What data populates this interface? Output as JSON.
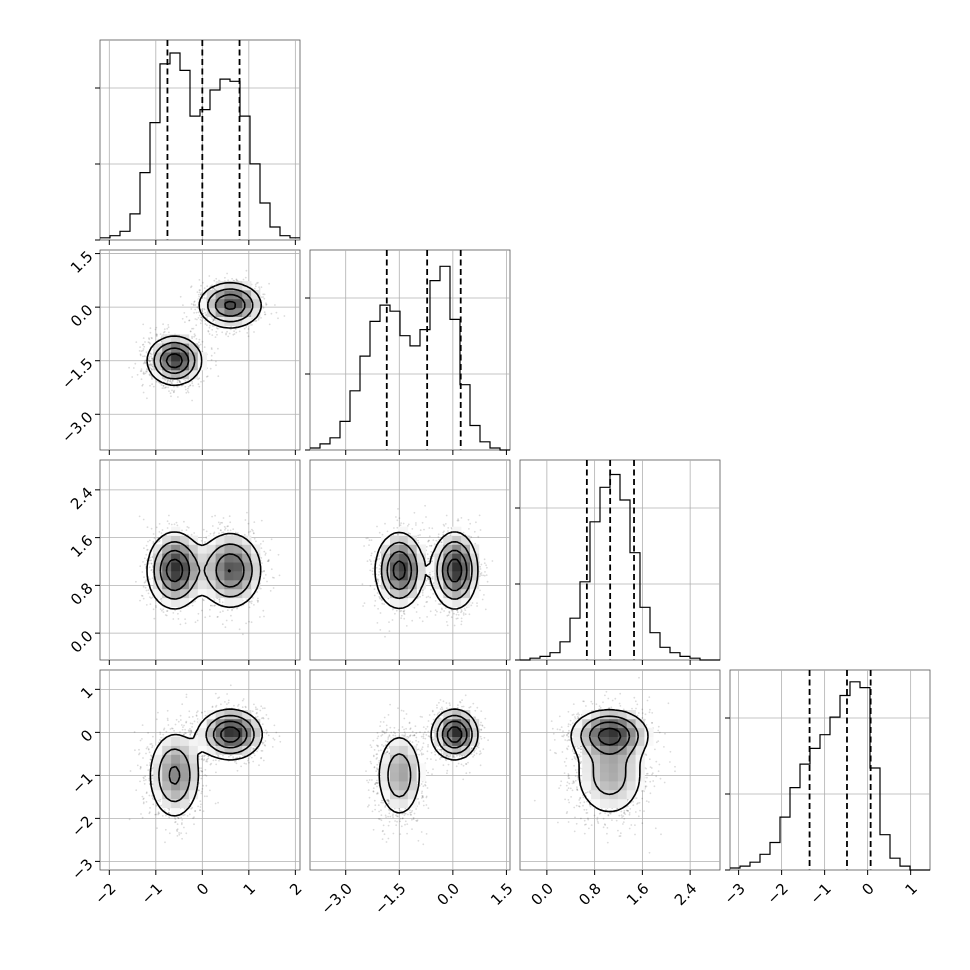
{
  "chart_data": {
    "type": "corner",
    "n_params": 4,
    "labels": [
      "",
      "",
      "",
      ""
    ],
    "ranges": [
      [
        -2.2,
        2.1
      ],
      [
        -4.0,
        1.6
      ],
      [
        -0.45,
        2.9
      ],
      [
        -3.2,
        1.45
      ]
    ],
    "ticks": [
      [
        -2,
        -1,
        0,
        1,
        2
      ],
      [
        -3.0,
        -1.5,
        0.0,
        1.5
      ],
      [
        0.0,
        0.8,
        1.6,
        2.4
      ],
      [
        -3,
        -2,
        -1,
        0,
        1
      ]
    ],
    "tick_labels": [
      [
        "−2",
        "−1",
        "0",
        "1",
        "2"
      ],
      [
        "−3.0",
        "−1.5",
        "0.0",
        "1.5"
      ],
      [
        "0.0",
        "0.8",
        "1.6",
        "2.4"
      ],
      [
        "−3",
        "−2",
        "−1",
        "0",
        "1"
      ]
    ],
    "quantiles": [
      [
        -0.75,
        0.0,
        0.8
      ],
      [
        -1.85,
        -0.72,
        0.22
      ],
      [
        0.67,
        1.06,
        1.46
      ],
      [
        -1.35,
        -0.48,
        0.07
      ]
    ],
    "histograms": [
      {
        "param": 0,
        "edges_start": -2.2,
        "bin_width": 0.215,
        "counts": [
          1,
          2,
          4,
          12,
          31,
          54,
          81,
          86,
          78,
          57,
          60,
          69,
          74,
          73,
          57,
          35,
          17,
          6,
          2,
          1
        ],
        "y_max": 92
      },
      {
        "param": 1,
        "edges_start": -4.0,
        "bin_width": 0.28,
        "counts": [
          1,
          3,
          6,
          14,
          29,
          46,
          63,
          71,
          68,
          56,
          51,
          59,
          83,
          90,
          64,
          32,
          12,
          4,
          1,
          0
        ],
        "y_max": 98
      },
      {
        "param": 2,
        "edges_start": -0.45,
        "bin_width": 0.1675,
        "counts": [
          0,
          1,
          2,
          4,
          10,
          23,
          43,
          76,
          95,
          102,
          88,
          59,
          29,
          15,
          7,
          4,
          2,
          1,
          0,
          0
        ],
        "y_max": 110
      },
      {
        "param": 3,
        "edges_start": -3.2,
        "bin_width": 0.2325,
        "counts": [
          1,
          2,
          4,
          8,
          14,
          27,
          42,
          54,
          62,
          69,
          78,
          89,
          96,
          93,
          52,
          18,
          6,
          2,
          0,
          0
        ],
        "y_max": 102
      }
    ],
    "components": [
      {
        "mean": [
          -0.6,
          -1.5,
          1.05,
          -1.0
        ],
        "sd": [
          0.3,
          0.35,
          0.33,
          0.55
        ],
        "weight": 0.5
      },
      {
        "mean": [
          0.6,
          0.05,
          1.05,
          -0.05
        ],
        "sd": [
          0.35,
          0.33,
          0.33,
          0.3
        ],
        "weight": 0.5
      }
    ],
    "density_levels": [
      0.15,
      0.35,
      0.6,
      0.85
    ],
    "grid": true
  }
}
